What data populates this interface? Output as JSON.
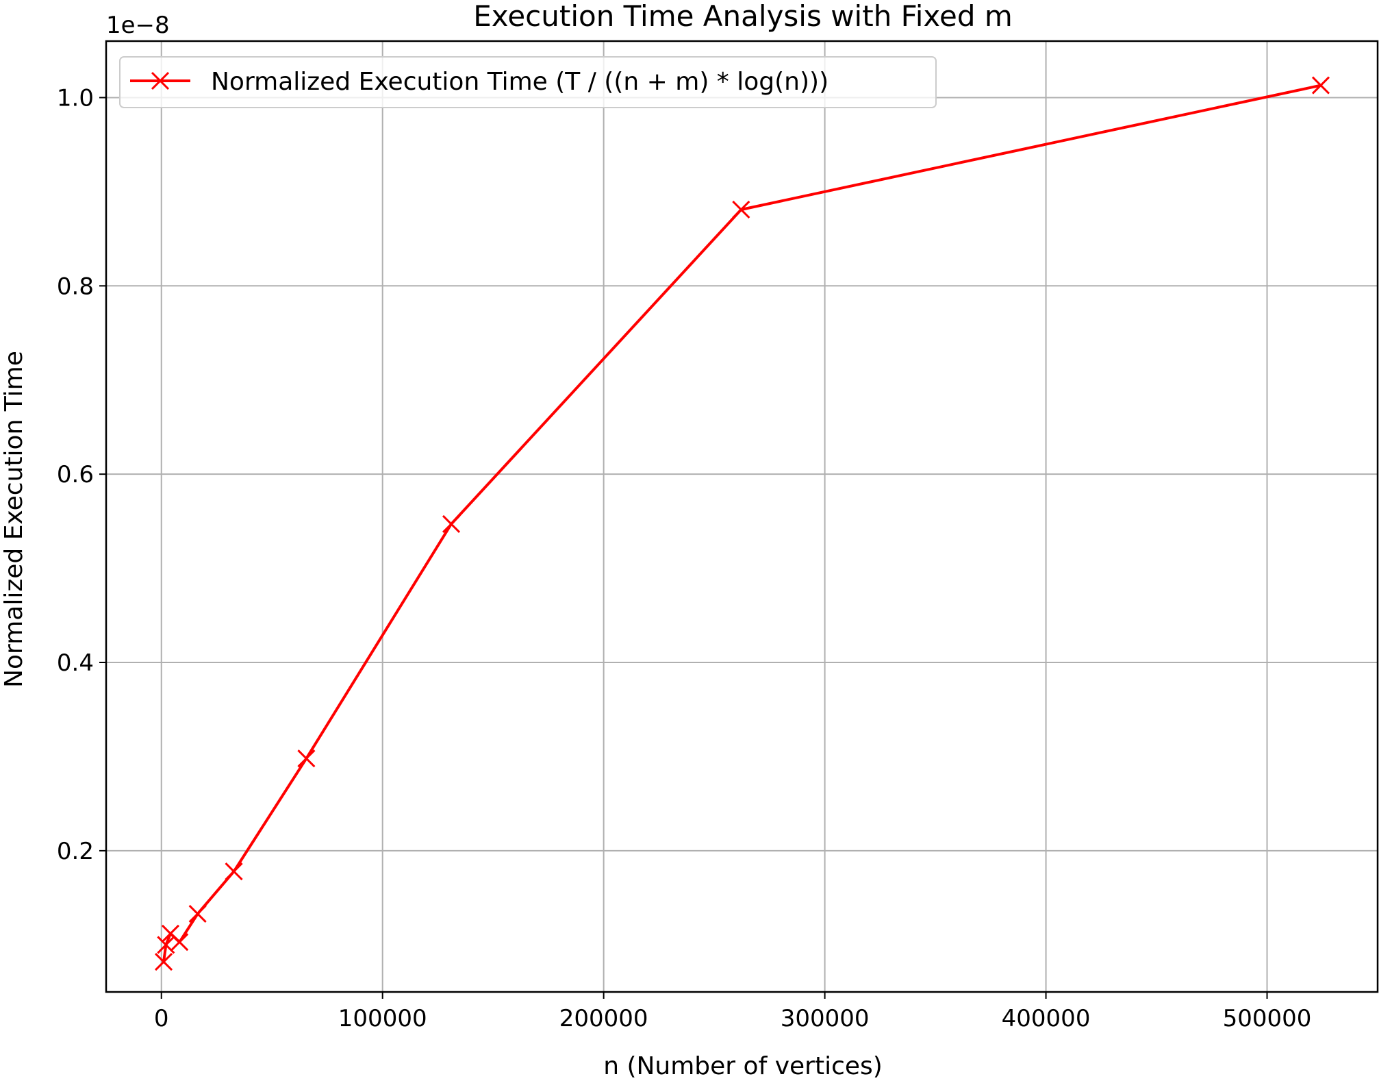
{
  "chart_data": {
    "type": "line",
    "title": "Execution Time Analysis with Fixed m",
    "xlabel": "n (Number of vertices)",
    "ylabel": "Normalized Execution Time",
    "y_offset_label": "1e−8",
    "xlim": [
      -25000,
      550000
    ],
    "ylim": [
      0.05,
      1.06
    ],
    "x_ticks": [
      0,
      100000,
      200000,
      300000,
      400000,
      500000
    ],
    "x_tick_labels": [
      "0",
      "100000",
      "200000",
      "300000",
      "400000",
      "500000"
    ],
    "y_ticks": [
      0.2,
      0.4,
      0.6,
      0.8,
      1.0
    ],
    "y_tick_labels": [
      "0.2",
      "0.4",
      "0.6",
      "0.8",
      "1.0"
    ],
    "grid": true,
    "legend_position": "top-left",
    "series": [
      {
        "name": "Normalized Execution Time (T / ((n + m) * log(n)))",
        "color": "#ff0000",
        "marker": "x",
        "x": [
          1024,
          2048,
          4096,
          8192,
          16384,
          32768,
          65536,
          131072,
          262144,
          524288
        ],
        "y": [
          0.082,
          0.1,
          0.112,
          0.103,
          0.133,
          0.178,
          0.298,
          0.547,
          0.881,
          1.013
        ]
      }
    ]
  }
}
